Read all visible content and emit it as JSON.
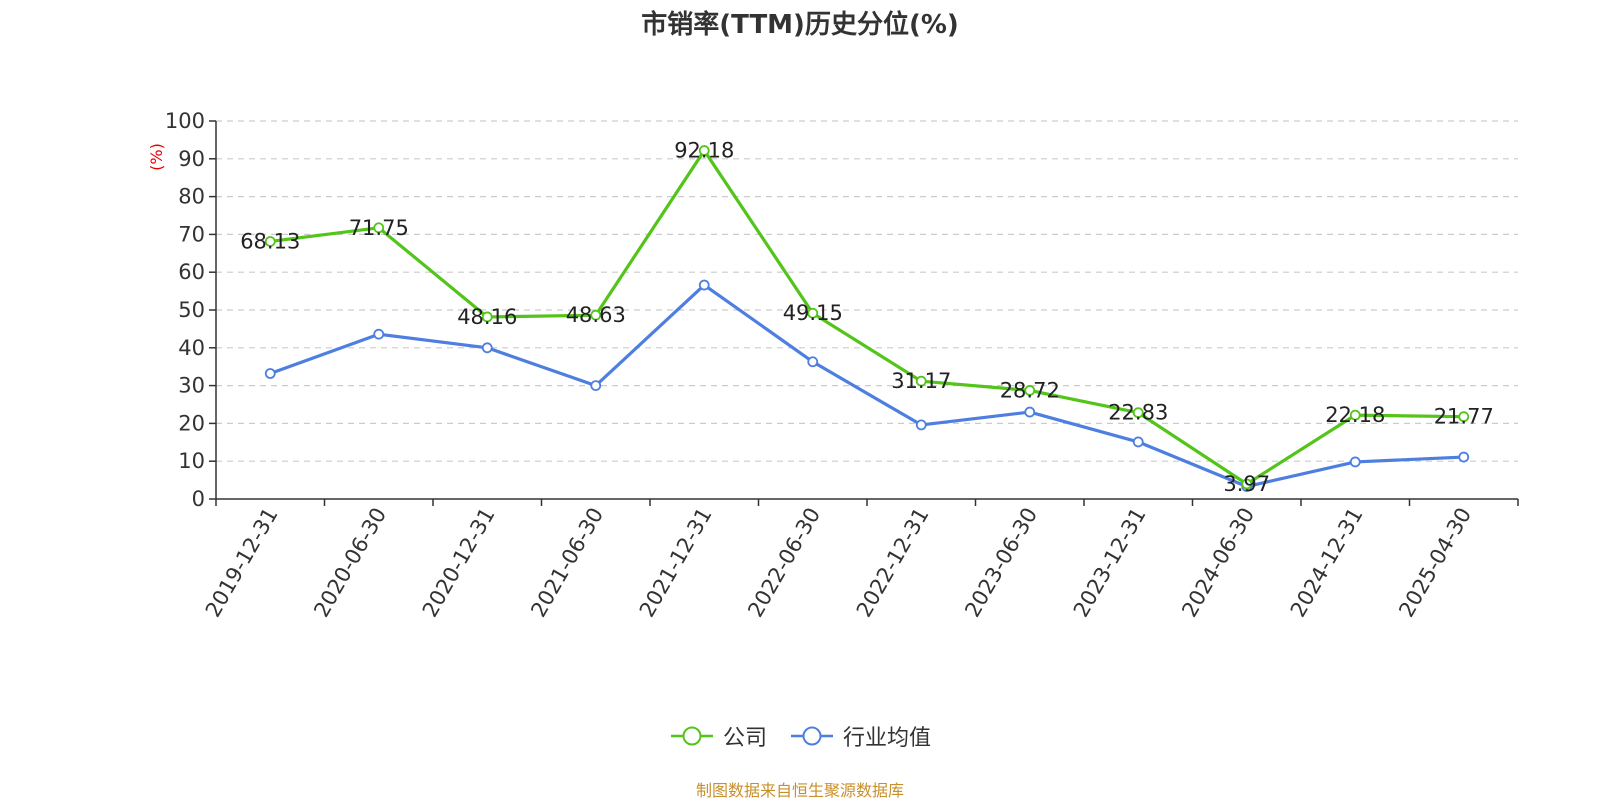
{
  "chart_data": {
    "type": "line",
    "title": "市销率(TTM)历史分位(%)",
    "ylabel": "(%)",
    "xlabel": "",
    "ylim": [
      0,
      100
    ],
    "yticks": [
      0,
      10,
      20,
      30,
      40,
      50,
      60,
      70,
      80,
      90,
      100
    ],
    "grid": true,
    "legend_position": "bottom",
    "categories": [
      "2019-12-31",
      "2020-06-30",
      "2020-12-31",
      "2021-06-30",
      "2021-12-31",
      "2022-06-30",
      "2022-12-31",
      "2023-06-30",
      "2023-12-31",
      "2024-06-30",
      "2024-12-31",
      "2025-04-30"
    ],
    "series": [
      {
        "name": "公司",
        "color": "#52c41a",
        "values": [
          68.13,
          71.75,
          48.16,
          48.63,
          92.18,
          49.15,
          31.17,
          28.72,
          22.83,
          3.97,
          22.18,
          21.77
        ],
        "data_labels": true
      },
      {
        "name": "行业均值",
        "color": "#4e7fe0",
        "values": [
          33.2,
          43.6,
          40.0,
          30.0,
          56.6,
          36.3,
          19.6,
          23.0,
          15.1,
          3.3,
          9.8,
          11.1
        ],
        "data_labels": false
      }
    ]
  },
  "footer": {
    "source_text": "制图数据来自恒生聚源数据库",
    "color": "#c8902a"
  },
  "ylabel_color": "#e60000"
}
